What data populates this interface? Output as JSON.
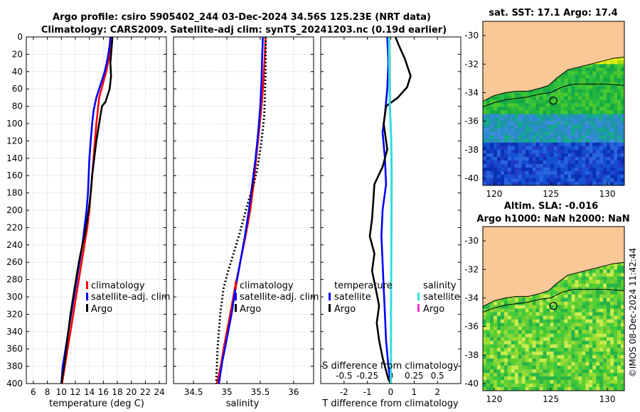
{
  "header": {
    "title_line1": "Argo profile: csiro 5905402_244 03-Dec-2024 34.56S 125.23E (NRT data)",
    "title_line2": "Climatology: CARS2009. Satellite-adj clim: synTS_20241203.nc (0.19d earlier)"
  },
  "credit": "©IMOS 08-Dec-2024 11:42:44",
  "colors": {
    "climatology": "#ff0000",
    "satellite": "#0000ff",
    "argo": "#000000",
    "satellite_salinity": "#33dddd",
    "argo_salinity": "#ff33cc",
    "land": "#f8c896"
  },
  "chart_data": [
    {
      "type": "line",
      "name": "temperature-profile",
      "xlabel": "temperature (deg C)",
      "ylabel": "",
      "xlim": [
        5,
        25
      ],
      "ylim": [
        400,
        0
      ],
      "grid": true,
      "xticks": [
        6,
        8,
        10,
        12,
        14,
        16,
        18,
        20,
        22,
        24
      ],
      "yticks": [
        0,
        20,
        40,
        60,
        80,
        100,
        120,
        140,
        160,
        180,
        200,
        220,
        240,
        260,
        280,
        300,
        320,
        340,
        360,
        380,
        400
      ],
      "legend": [
        "climatology",
        "satellite-adj. clim",
        "Argo"
      ],
      "legend_position": "lower-right",
      "series": [
        {
          "name": "climatology",
          "key": "climatology",
          "x": [
            17.1,
            17.0,
            16.8,
            16.4,
            15.9,
            15.4,
            15.2,
            15.0,
            14.8,
            14.6,
            14.4,
            14.2,
            14.0,
            13.7,
            13.3,
            12.9,
            12.5,
            12.1,
            11.7,
            11.3,
            10.9,
            10.5,
            10.1
          ],
          "depth": [
            0,
            10,
            25,
            40,
            55,
            70,
            85,
            100,
            120,
            140,
            160,
            180,
            200,
            220,
            240,
            260,
            280,
            300,
            320,
            340,
            360,
            380,
            400
          ]
        },
        {
          "name": "satellite-adj. clim",
          "key": "satellite",
          "x": [
            17.0,
            16.9,
            16.6,
            16.2,
            15.6,
            15.0,
            14.6,
            14.4,
            14.2,
            14.0,
            13.9,
            13.8,
            13.6,
            13.3,
            13.0,
            12.6,
            12.2,
            11.8,
            11.4,
            11.0,
            10.6,
            10.2,
            10.0
          ],
          "depth": [
            0,
            10,
            25,
            40,
            55,
            70,
            85,
            100,
            120,
            140,
            160,
            180,
            200,
            220,
            240,
            260,
            280,
            300,
            320,
            340,
            360,
            380,
            400
          ]
        },
        {
          "name": "Argo",
          "key": "argo",
          "x": [
            17.3,
            17.2,
            17.1,
            17.0,
            17.1,
            16.9,
            16.3,
            15.8,
            15.4,
            15.0,
            14.7,
            14.4,
            14.2,
            13.9,
            13.7,
            13.5,
            13.3,
            13.0,
            12.5,
            12.1,
            11.7,
            11.3,
            11.0,
            10.7,
            10.4,
            10.2,
            10.0
          ],
          "depth": [
            0,
            10,
            20,
            30,
            45,
            60,
            75,
            80,
            100,
            120,
            140,
            160,
            180,
            200,
            210,
            220,
            230,
            240,
            260,
            280,
            300,
            320,
            340,
            360,
            380,
            390,
            400
          ]
        }
      ]
    },
    {
      "type": "line",
      "name": "salinity-profile",
      "xlabel": "salinity",
      "ylabel": "",
      "xlim": [
        34.2,
        36.3
      ],
      "ylim": [
        400,
        0
      ],
      "grid": true,
      "xticks": [
        34.5,
        35,
        35.5,
        36
      ],
      "xticklabels": [
        "34.5",
        "35",
        "35.5",
        "36"
      ],
      "legend": [
        "climatology",
        "satellite-adj. clim",
        "Argo"
      ],
      "legend_position": "lower-right",
      "series": [
        {
          "name": "climatology",
          "key": "climatology",
          "x": [
            35.58,
            35.57,
            35.55,
            35.52,
            35.48,
            35.44,
            35.4,
            35.35,
            35.28,
            35.2,
            35.12,
            35.05,
            35.0,
            34.95,
            34.92,
            34.88,
            34.85
          ],
          "depth": [
            0,
            20,
            50,
            80,
            110,
            140,
            170,
            200,
            230,
            260,
            290,
            320,
            340,
            360,
            375,
            390,
            400
          ]
        },
        {
          "name": "satellite-adj. clim",
          "key": "satellite",
          "x": [
            35.54,
            35.53,
            35.52,
            35.5,
            35.47,
            35.43,
            35.38,
            35.33,
            35.27,
            35.2,
            35.13,
            35.07,
            35.02,
            34.97,
            34.93,
            34.9,
            34.88
          ],
          "depth": [
            0,
            20,
            50,
            80,
            110,
            140,
            170,
            200,
            230,
            260,
            290,
            320,
            340,
            360,
            375,
            390,
            400
          ]
        },
        {
          "name": "Argo",
          "key": "argo",
          "x": [
            35.58,
            35.58,
            35.56,
            35.52,
            35.48,
            35.45,
            35.4,
            35.32,
            35.25,
            35.18,
            35.1,
            35.02,
            34.95,
            34.9,
            34.86,
            34.84
          ],
          "depth": [
            0,
            40,
            90,
            120,
            140,
            155,
            170,
            190,
            210,
            230,
            250,
            270,
            290,
            320,
            360,
            400
          ]
        }
      ]
    },
    {
      "type": "line",
      "name": "difference-profile",
      "xlabel": "T difference from climatology",
      "top_axis_label": "S difference from climatology",
      "xlim": [
        -3,
        3
      ],
      "ylim": [
        400,
        0
      ],
      "grid": false,
      "xticks": [
        -2,
        -1,
        0,
        1,
        2
      ],
      "top_xticks": [
        -0.5,
        -0.25,
        0,
        0.25,
        0.5
      ],
      "top_xticklabels": [
        "-0.5",
        "-0.25",
        "0",
        "0.25",
        "0.5"
      ],
      "legend_temperature_title": "temperature",
      "legend_salinity_title": "salinity",
      "legend_temperature": [
        "satellite",
        "Argo"
      ],
      "legend_salinity": [
        "satellite",
        "Argo"
      ],
      "legend_position": "lower-center",
      "series": [
        {
          "name": "temperature satellite",
          "key": "satellite",
          "x": [
            -0.15,
            -0.1,
            -0.15,
            -0.25,
            -0.35,
            -0.25,
            -0.2,
            -0.35,
            -0.4,
            -0.35,
            -0.3,
            -0.25,
            -0.2,
            -0.1,
            0.0
          ],
          "depth": [
            0,
            30,
            60,
            90,
            110,
            140,
            170,
            200,
            230,
            260,
            290,
            320,
            350,
            380,
            400
          ]
        },
        {
          "name": "temperature Argo",
          "key": "argo",
          "x": [
            0.2,
            0.35,
            0.6,
            0.85,
            0.7,
            0.3,
            -0.2,
            -0.3,
            -0.15,
            -0.35,
            -0.7,
            -0.75,
            -0.8,
            -0.9,
            -0.7,
            -0.8,
            -0.65,
            -0.5,
            -0.6,
            -0.5,
            -0.35,
            -0.2,
            -0.1,
            0.0
          ],
          "depth": [
            0,
            10,
            25,
            45,
            58,
            70,
            80,
            100,
            130,
            150,
            170,
            190,
            210,
            230,
            250,
            270,
            290,
            310,
            330,
            350,
            370,
            385,
            395,
            400
          ]
        },
        {
          "name": "salinity satellite",
          "key": "satellite_salinity",
          "axis": "S",
          "x": [
            -0.02,
            -0.015,
            -0.01,
            0.005,
            0.01,
            0.008,
            0.005,
            0.003,
            0.002,
            0.001
          ],
          "depth": [
            0,
            40,
            80,
            120,
            160,
            200,
            260,
            320,
            370,
            400
          ]
        }
      ]
    },
    {
      "type": "heatmap",
      "name": "sst-map",
      "title": "sat. SST: 17.1 Argo: 17.4",
      "xlim": [
        119,
        131.5
      ],
      "ylim": [
        -40.5,
        -29
      ],
      "xticks": [
        120,
        125,
        130
      ],
      "yticks": [
        -30,
        -32,
        -34,
        -36,
        -38,
        -40
      ],
      "marker": {
        "lon": 125.23,
        "lat": -34.56
      }
    },
    {
      "type": "heatmap",
      "name": "sla-map",
      "title_line1": "Altim. SLA: -0.016",
      "title_line2": "Argo h1000: NaN h2000: NaN",
      "xlim": [
        119,
        131.5
      ],
      "ylim": [
        -40.5,
        -29
      ],
      "xticks": [
        120,
        125,
        130
      ],
      "yticks": [
        -30,
        -32,
        -34,
        -36,
        -38,
        -40
      ],
      "marker": {
        "lon": 125.23,
        "lat": -34.56
      }
    }
  ]
}
